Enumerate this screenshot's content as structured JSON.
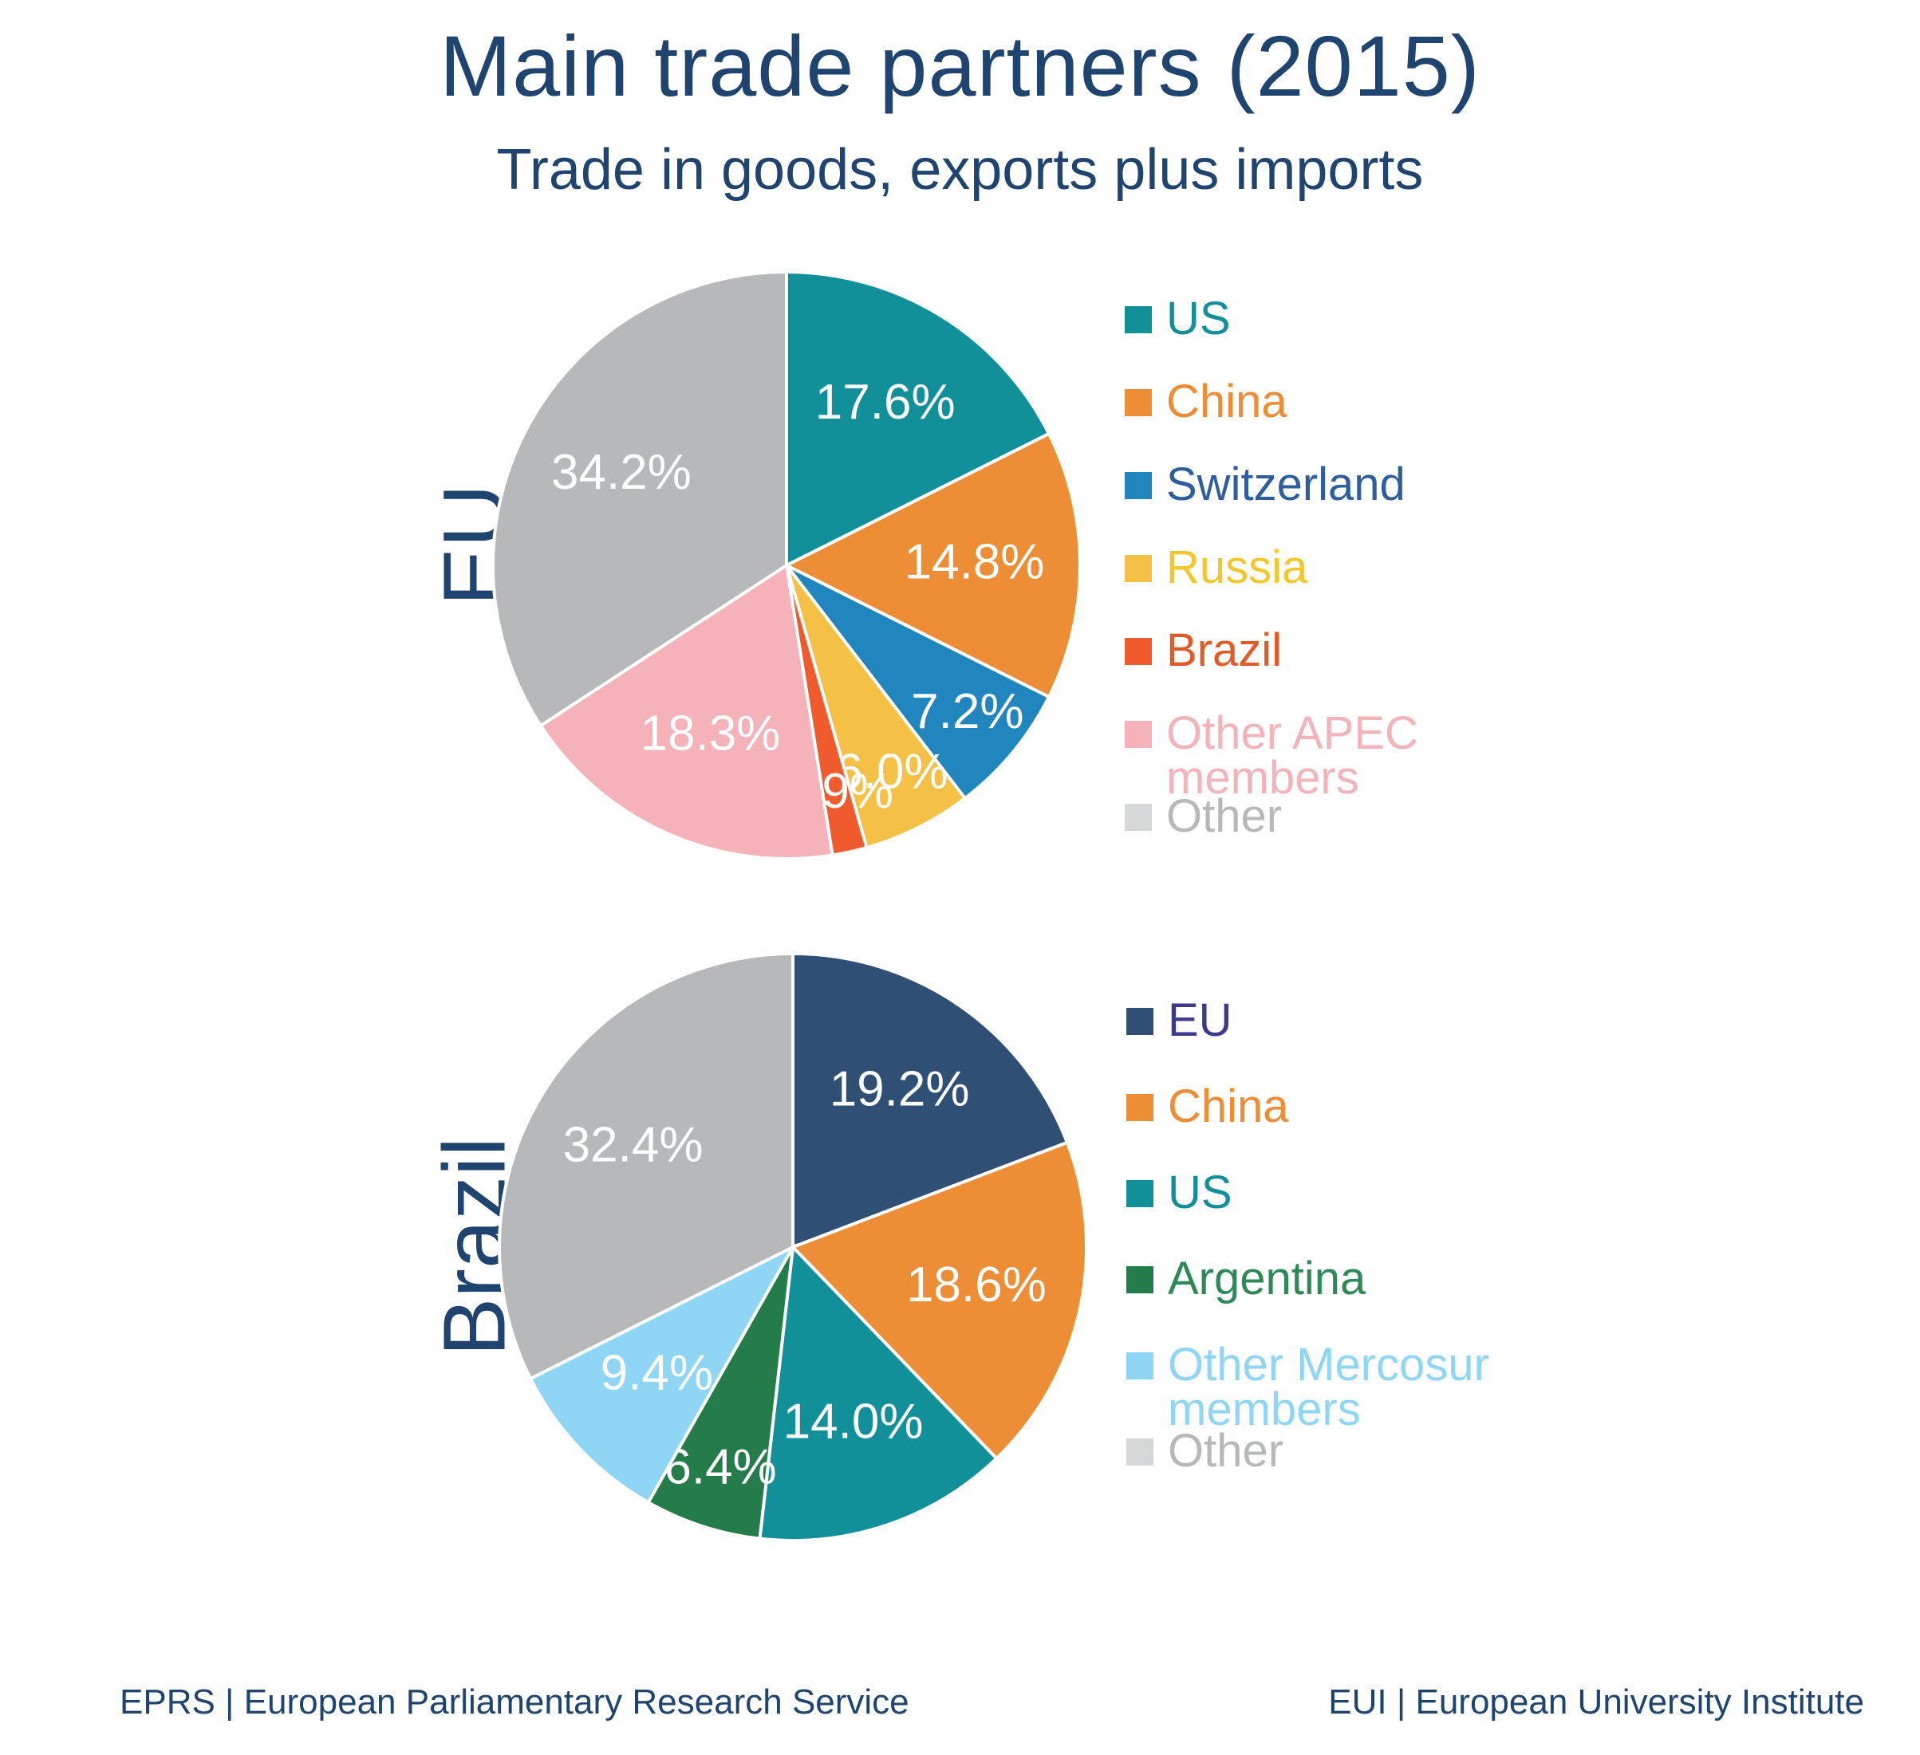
{
  "title": "Main trade partners (2015)",
  "subtitle": "Trade in goods, exports plus imports",
  "footer": {
    "left": "EPRS | European Parliamentary Research Service",
    "right": "EUI | European University Institute"
  },
  "chart_data": [
    {
      "type": "pie",
      "panel_label": "EU",
      "title": "",
      "legend_placement": "right",
      "slices": [
        {
          "name": "US",
          "value": 17.6,
          "label": "17.6%",
          "color": "#12909a"
        },
        {
          "name": "China",
          "value": 14.8,
          "label": "14.8%",
          "color": "#ed8d36"
        },
        {
          "name": "Switzerland",
          "value": 7.2,
          "label": "7.2%",
          "color": "#2186bd"
        },
        {
          "name": "Russia",
          "value": 6.0,
          "label": "6.0%",
          "color": "#f4c146"
        },
        {
          "name": "Brazil",
          "value": 1.9,
          "label": "1.9%",
          "color": "#ef5b2d"
        },
        {
          "name": "Other APEC members",
          "value": 18.3,
          "label": "18.3%",
          "color": "#f5b2b8"
        },
        {
          "name": "Other",
          "value": 34.2,
          "label": "34.2%",
          "color": "#b7b8ba"
        }
      ],
      "legend_text_colors": [
        "#12909a",
        "#ed8d36",
        "#2e5e9e",
        "#f2c72c",
        "#e25b26",
        "#f2b3b9",
        "#b7b8ba"
      ]
    },
    {
      "type": "pie",
      "panel_label": "Brazil",
      "title": "",
      "legend_placement": "right",
      "slices": [
        {
          "name": "EU",
          "value": 19.2,
          "label": "19.2%",
          "color": "#2f5074"
        },
        {
          "name": "China",
          "value": 18.6,
          "label": "18.6%",
          "color": "#ed8d36"
        },
        {
          "name": "US",
          "value": 14.0,
          "label": "14.0%",
          "color": "#12909a"
        },
        {
          "name": "Argentina",
          "value": 6.4,
          "label": "6.4%",
          "color": "#237c4a"
        },
        {
          "name": "Other Mercosur members",
          "value": 9.4,
          "label": "9.4%",
          "color": "#8fd6f5"
        },
        {
          "name": "Other",
          "value": 32.4,
          "label": "32.4%",
          "color": "#b7b8ba"
        }
      ],
      "legend_text_colors": [
        "#3b3a8c",
        "#ed8d36",
        "#12909a",
        "#2d8a57",
        "#8fd6f5",
        "#b7b8ba"
      ]
    }
  ]
}
